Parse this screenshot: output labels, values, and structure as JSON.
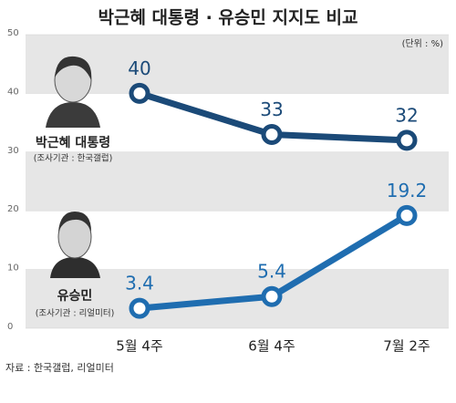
{
  "chart_data": {
    "type": "line",
    "title": "박근혜 대통령 · 유승민 지지도 비교",
    "unit_note": "(단위 : %)",
    "source": "자료 : 한국갤럽, 리얼미터",
    "categories": [
      "5월 4주",
      "6월 4주",
      "7월 2주"
    ],
    "ylim": [
      0,
      50
    ],
    "yticks": [
      0,
      10,
      20,
      30,
      40,
      50
    ],
    "series": [
      {
        "name": "박근혜 대통령",
        "survey": "(조사기관 : 한국갤럽)",
        "color": "#1b4a78",
        "values": [
          40,
          33,
          32
        ]
      },
      {
        "name": "유승민",
        "survey": "(조사기관 : 리얼미터)",
        "color": "#1f6db0",
        "values": [
          3.4,
          5.4,
          19.2
        ]
      }
    ]
  }
}
